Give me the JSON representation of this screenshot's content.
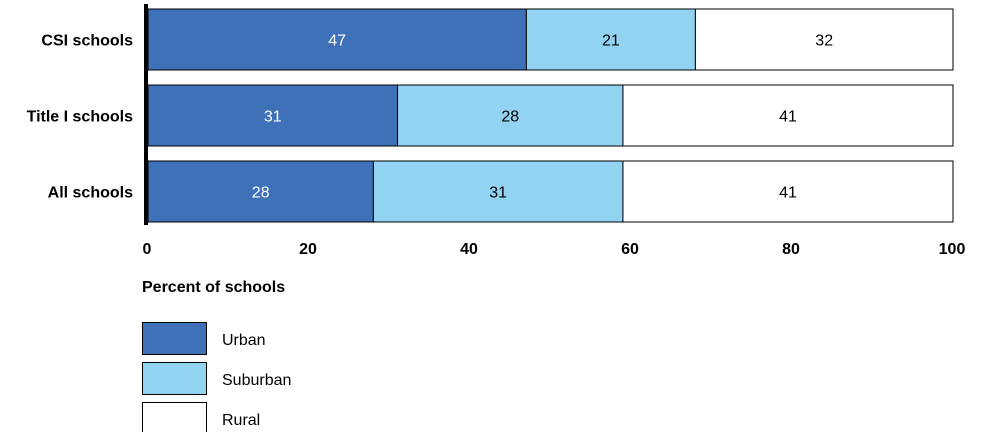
{
  "chart_data": {
    "type": "bar",
    "orientation": "horizontal",
    "stacked": true,
    "categories": [
      "CSI schools",
      "Title I schools",
      "All schools"
    ],
    "series": [
      {
        "name": "Urban",
        "values": [
          47,
          31,
          28
        ],
        "color": "#3e71b8",
        "label_color": "#ffffff"
      },
      {
        "name": "Suburban",
        "values": [
          21,
          28,
          31
        ],
        "color": "#92d3f1",
        "label_color": "#000000"
      },
      {
        "name": "Rural",
        "values": [
          32,
          41,
          41
        ],
        "color": "#ffffff",
        "label_color": "#000000"
      }
    ],
    "xlabel": "Percent of schools",
    "ylabel": "",
    "xlim": [
      0,
      100
    ],
    "x_ticks": [
      "0",
      "20",
      "40",
      "60",
      "80",
      "100"
    ],
    "grid": false,
    "legend_position": "bottom-left"
  }
}
